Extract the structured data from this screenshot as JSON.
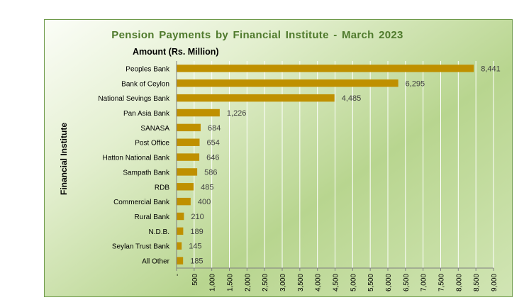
{
  "chart_data": {
    "type": "bar",
    "orientation": "horizontal",
    "title": "Pension  Payments  by Financial  Institute  - March  2023",
    "xlabel": "Amount (Rs.  Million)",
    "ylabel": "Financial Institute",
    "categories": [
      "Peoples Bank",
      "Bank of Ceylon",
      "National Sevings Bank",
      "Pan Asia Bank",
      "SANASA",
      "Post Office",
      "Hatton National Bank",
      "Sampath Bank",
      "RDB",
      "Commercial Bank",
      "Rural Bank",
      "N.D.B.",
      "Seylan Trust Bank",
      "All Other"
    ],
    "values": [
      8441,
      6295,
      4485,
      1226,
      684,
      654,
      646,
      586,
      485,
      400,
      210,
      189,
      145,
      185
    ],
    "value_labels": [
      "8,441",
      "6,295",
      "4,485",
      "1,226",
      "684",
      "654",
      "646",
      "586",
      "485",
      "400",
      "210",
      "189",
      "145",
      "185"
    ],
    "xticks": [
      0,
      500,
      1000,
      1500,
      2000,
      2500,
      3000,
      3500,
      4000,
      4500,
      5000,
      5500,
      6000,
      6500,
      7000,
      7500,
      8000,
      8500,
      9000
    ],
    "xtick_labels": [
      "-",
      "500",
      "1,000",
      "1,500",
      "2,000",
      "2,500",
      "3,000",
      "3,500",
      "4,000",
      "4,500",
      "5,000",
      "5,500",
      "6,000",
      "6,500",
      "7,000",
      "7,500",
      "8,000",
      "8,500",
      "9,000"
    ],
    "xlim": [
      0,
      9000
    ],
    "grid": true,
    "legend": "none",
    "bar_color": "#bf9000",
    "grid_color": "#ffffff"
  }
}
